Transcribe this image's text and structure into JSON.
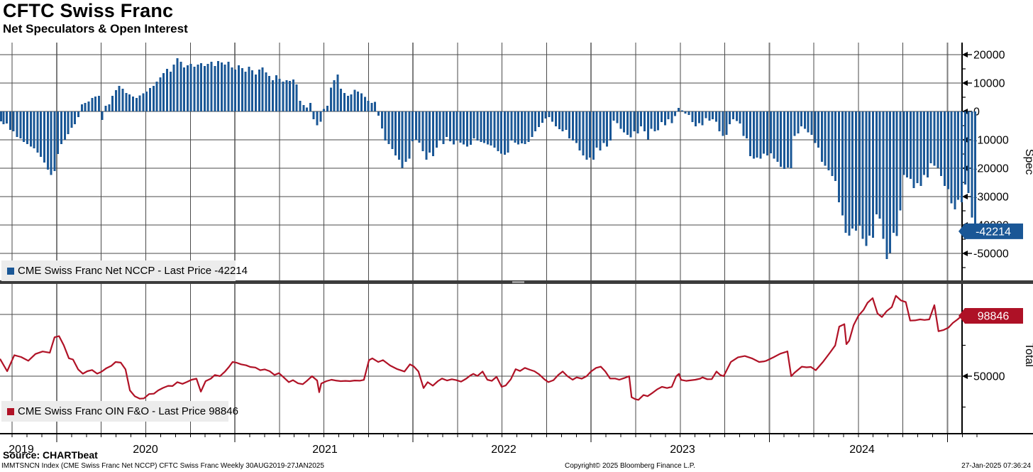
{
  "header": {
    "title": "CFTC Swiss Franc",
    "subtitle": "Net Speculators & Open Interest"
  },
  "x_axis": {
    "year_labels": [
      "2019",
      "2020",
      "2021",
      "2022",
      "2023",
      "2024"
    ],
    "range_text": "30AUG2019-27JAN2025",
    "frequency": "Weekly"
  },
  "colors": {
    "bar": "#1a5796",
    "bar_badge": "#1a5796",
    "line": "#b01226",
    "line_badge": "#ae1126",
    "grid": "#4a4a4a",
    "year_grid": "#7d7d7d",
    "axis": "#000000",
    "legend_bg": "#ececec",
    "badge_text": "#ffffff"
  },
  "legend_top": {
    "label": "CME Swiss Franc Net NCCP - Last Price -42214"
  },
  "legend_bottom": {
    "label": "CME Swiss Franc OIN F&O - Last Price 98846"
  },
  "footer": {
    "source": "Source: CHARTbeat",
    "index_line": "IMMTSNCN Index (CME Swiss Franc Net NCCP) CFTC Swiss Franc  Weekly 30AUG2019-27JAN2025",
    "copyright": "Copyright© 2025 Bloomberg Finance L.P.",
    "timestamp": "27-Jan-2025 07:36:24"
  },
  "chart_data": [
    {
      "type": "bar",
      "title": "CME Swiss Franc Net NCCP - Last Price -42214",
      "series_name": "CME Swiss Franc Net NCCP",
      "last_price": -42214,
      "axis_label": "Spec",
      "legend_position": "bottom-left inside",
      "grid": true,
      "y_ticks": [
        20000,
        10000,
        0,
        -10000,
        -20000,
        -30000,
        -40000,
        -50000
      ],
      "y_minor_ticks": [
        15000,
        5000,
        -5000,
        -15000,
        -25000,
        -35000,
        -45000,
        -55000
      ],
      "ylim": [
        -59500,
        24250
      ],
      "x_start": "30AUG2019",
      "x_end": "27JAN2025",
      "frequency": "Weekly",
      "values": [
        -3500,
        -4500,
        -4200,
        -6500,
        -7000,
        -9000,
        -9500,
        -10700,
        -11500,
        -12400,
        -13000,
        -14500,
        -16000,
        -18000,
        -20500,
        -22400,
        -21000,
        -15000,
        -11500,
        -10000,
        -8000,
        -5700,
        -4500,
        -2000,
        2500,
        3000,
        3500,
        4800,
        5200,
        5500,
        -3000,
        2000,
        2500,
        5500,
        7500,
        9000,
        8000,
        6500,
        6000,
        5200,
        4800,
        5600,
        6400,
        7000,
        8200,
        9000,
        10500,
        12000,
        13500,
        15000,
        14000,
        16500,
        18700,
        17500,
        15500,
        16200,
        16800,
        15800,
        16500,
        17000,
        16000,
        16800,
        17500,
        16000,
        17800,
        17200,
        16500,
        17500,
        15500,
        14800,
        16300,
        15200,
        14000,
        15800,
        14500,
        13000,
        14800,
        15500,
        13800,
        12500,
        11000,
        12800,
        11500,
        10500,
        11000,
        10800,
        11200,
        9500,
        3800,
        2200,
        1400,
        3000,
        -2800,
        -4900,
        -3600,
        900,
        2000,
        8400,
        11000,
        13000,
        8000,
        6500,
        5500,
        6000,
        7600,
        7000,
        6400,
        5100,
        3800,
        3000,
        3400,
        -1500,
        -6000,
        -10300,
        -11500,
        -13250,
        -15500,
        -17000,
        -19900,
        -17800,
        -16600,
        -10500,
        -10000,
        -11000,
        -14000,
        -17000,
        -14500,
        -15750,
        -12800,
        -10300,
        -11500,
        -9000,
        -10500,
        -11600,
        -10300,
        -11000,
        -11600,
        -12400,
        -11800,
        -9500,
        -10300,
        -10700,
        -11100,
        -11600,
        -12000,
        -12800,
        -14000,
        -14900,
        -15300,
        -14500,
        -10300,
        -11000,
        -11600,
        -11300,
        -11500,
        -10800,
        -9000,
        -7000,
        -5500,
        -4000,
        -2500,
        -2000,
        -3600,
        -5300,
        -6200,
        -7000,
        -6500,
        -9500,
        -10300,
        -11100,
        -13700,
        -15500,
        -17000,
        -16200,
        -17000,
        -12800,
        -13700,
        -11100,
        -12400,
        -10300,
        -3200,
        -4100,
        -6100,
        -7400,
        -8200,
        -9100,
        -7000,
        -7800,
        -5300,
        -7000,
        -9900,
        -6100,
        -7000,
        -6600,
        -3700,
        -4900,
        -2800,
        -4100,
        -1600,
        1300,
        400,
        -750,
        -1200,
        -3700,
        -5300,
        -4100,
        -4900,
        -2400,
        -3200,
        -2800,
        -3600,
        -7000,
        -8600,
        -8200,
        -4500,
        -2800,
        -3400,
        -4200,
        -8600,
        -9500,
        -15700,
        -16600,
        -16200,
        -16600,
        -14900,
        -15500,
        -14700,
        -16600,
        -17800,
        -19500,
        -20300,
        -19800,
        -20000,
        -8600,
        -7800,
        -5300,
        -6100,
        -7400,
        -8200,
        -11100,
        -12800,
        -17800,
        -19100,
        -20800,
        -22800,
        -24500,
        -32000,
        -36600,
        -42800,
        -43700,
        -41200,
        -42000,
        -40300,
        -44900,
        -47400,
        -43700,
        -44500,
        -36200,
        -37800,
        -44900,
        -52000,
        -49900,
        -42800,
        -43900,
        -34900,
        -22400,
        -23200,
        -23700,
        -27000,
        -25300,
        -26200,
        -22400,
        -23200,
        -18200,
        -19100,
        -19900,
        -22800,
        -26200,
        -27400,
        -32400,
        -34500,
        -31100,
        -32000,
        -25800,
        -28700,
        -37400,
        -42214
      ]
    },
    {
      "type": "line",
      "title": "CME Swiss Franc OIN F&O - Last Price 98846",
      "series_name": "CME Swiss Franc OIN F&O",
      "last_price": 98846,
      "axis_label": "Total",
      "grid": true,
      "y_ticks": [
        100000,
        50000
      ],
      "y_minor_ticks": [
        75000,
        25000
      ],
      "ylim": [
        4000,
        124700
      ],
      "x_start": "30AUG2019",
      "x_end": "27JAN2025",
      "frequency": "Weekly",
      "points": [
        [
          0,
          64000
        ],
        [
          2.1,
          54000
        ],
        [
          4.2,
          67000
        ],
        [
          6.2,
          65500
        ],
        [
          8.3,
          62500
        ],
        [
          10.4,
          68000
        ],
        [
          12.5,
          70000
        ],
        [
          14.6,
          69000
        ],
        [
          16,
          81500
        ],
        [
          17.3,
          82500
        ],
        [
          18.7,
          75000
        ],
        [
          20.2,
          64500
        ],
        [
          21.4,
          63500
        ],
        [
          22.9,
          55500
        ],
        [
          24.3,
          52000
        ],
        [
          25.6,
          54000
        ],
        [
          27,
          55000
        ],
        [
          28.5,
          52000
        ],
        [
          29.7,
          53500
        ],
        [
          31.2,
          56500
        ],
        [
          32.7,
          58500
        ],
        [
          33.9,
          61500
        ],
        [
          35.4,
          61000
        ],
        [
          36.8,
          55500
        ],
        [
          38.1,
          38500
        ],
        [
          39.5,
          33800
        ],
        [
          41,
          31800
        ],
        [
          42.2,
          32000
        ],
        [
          43.7,
          35500
        ],
        [
          45.1,
          35800
        ],
        [
          46.4,
          38500
        ],
        [
          47.8,
          40500
        ],
        [
          49.3,
          42200
        ],
        [
          50.6,
          42000
        ],
        [
          52,
          45200
        ],
        [
          53.5,
          43800
        ],
        [
          54.7,
          45200
        ],
        [
          56.2,
          47100
        ],
        [
          57.6,
          48000
        ],
        [
          58.9,
          37500
        ],
        [
          60.3,
          46000
        ],
        [
          61.8,
          48000
        ],
        [
          63,
          51000
        ],
        [
          64.5,
          50000
        ],
        [
          66,
          53800
        ],
        [
          67.2,
          57700
        ],
        [
          68.2,
          61500
        ],
        [
          69.3,
          61000
        ],
        [
          70.7,
          59600
        ],
        [
          72.2,
          58800
        ],
        [
          73.4,
          57500
        ],
        [
          74.9,
          57000
        ],
        [
          76.3,
          54800
        ],
        [
          77.6,
          55500
        ],
        [
          79.1,
          54000
        ],
        [
          80.5,
          51000
        ],
        [
          81.8,
          52500
        ],
        [
          83.2,
          49000
        ],
        [
          84.7,
          45200
        ],
        [
          85.9,
          46800
        ],
        [
          87.4,
          44200
        ],
        [
          88.8,
          43500
        ],
        [
          90.1,
          46500
        ],
        [
          91.5,
          50000
        ],
        [
          93,
          46500
        ],
        [
          93.6,
          37000
        ],
        [
          94.2,
          44000
        ],
        [
          95.7,
          46000
        ],
        [
          97.2,
          47100
        ],
        [
          98.4,
          46500
        ],
        [
          99.9,
          46000
        ],
        [
          101.3,
          46200
        ],
        [
          102.6,
          46000
        ],
        [
          104,
          46500
        ],
        [
          105.5,
          46300
        ],
        [
          106.7,
          47000
        ],
        [
          108.2,
          63000
        ],
        [
          109.2,
          64400
        ],
        [
          110.9,
          61500
        ],
        [
          112.3,
          63000
        ],
        [
          114.4,
          58600
        ],
        [
          116.5,
          55700
        ],
        [
          118.6,
          53800
        ],
        [
          120.2,
          59600
        ],
        [
          121.3,
          58000
        ],
        [
          122.7,
          53800
        ],
        [
          124.2,
          40400
        ],
        [
          125.4,
          45200
        ],
        [
          126.9,
          42300
        ],
        [
          128.4,
          46000
        ],
        [
          129.6,
          48100
        ],
        [
          131.1,
          46500
        ],
        [
          132.5,
          47500
        ],
        [
          133.8,
          46800
        ],
        [
          135.2,
          45600
        ],
        [
          136.7,
          48000
        ],
        [
          137.9,
          50500
        ],
        [
          138.8,
          51900
        ],
        [
          140,
          50200
        ],
        [
          141.5,
          53800
        ],
        [
          142.9,
          47100
        ],
        [
          144.2,
          46200
        ],
        [
          145.6,
          49500
        ],
        [
          147.1,
          41400
        ],
        [
          148.3,
          42500
        ],
        [
          149.8,
          47500
        ],
        [
          151.2,
          55700
        ],
        [
          152.5,
          54200
        ],
        [
          153.9,
          56700
        ],
        [
          155.4,
          55200
        ],
        [
          156.7,
          54000
        ],
        [
          158.1,
          51500
        ],
        [
          159.6,
          47500
        ],
        [
          160.8,
          45200
        ],
        [
          162.3,
          46800
        ],
        [
          163.7,
          51000
        ],
        [
          165,
          53800
        ],
        [
          166.4,
          50000
        ],
        [
          167.9,
          47100
        ],
        [
          169.1,
          49000
        ],
        [
          170.6,
          48000
        ],
        [
          172,
          50000
        ],
        [
          173.3,
          53800
        ],
        [
          174.8,
          56700
        ],
        [
          176.2,
          57700
        ],
        [
          177.5,
          53800
        ],
        [
          178.9,
          48100
        ],
        [
          180.4,
          48100
        ],
        [
          181.6,
          47100
        ],
        [
          183.1,
          48500
        ],
        [
          184.5,
          50000
        ],
        [
          185.2,
          33000
        ],
        [
          186.2,
          31500
        ],
        [
          187.2,
          30800
        ],
        [
          188.7,
          34700
        ],
        [
          189.9,
          33800
        ],
        [
          191.4,
          36600
        ],
        [
          192.8,
          39500
        ],
        [
          194.1,
          41400
        ],
        [
          195.6,
          40400
        ],
        [
          197,
          41400
        ],
        [
          198.3,
          50000
        ],
        [
          199.1,
          51900
        ],
        [
          199.7,
          47000
        ],
        [
          201.2,
          46200
        ],
        [
          202.4,
          46600
        ],
        [
          203.9,
          47100
        ],
        [
          205.3,
          48000
        ],
        [
          206,
          49000
        ],
        [
          207.4,
          47500
        ],
        [
          208.7,
          47600
        ],
        [
          210.1,
          53800
        ],
        [
          211.2,
          51000
        ],
        [
          212.2,
          50000
        ],
        [
          214.3,
          61500
        ],
        [
          216.4,
          65300
        ],
        [
          218.4,
          66300
        ],
        [
          219.9,
          65000
        ],
        [
          220.5,
          64400
        ],
        [
          222.6,
          61500
        ],
        [
          224.1,
          62000
        ],
        [
          224.7,
          62500
        ],
        [
          226.8,
          65300
        ],
        [
          228.8,
          68200
        ],
        [
          230.3,
          69500
        ],
        [
          230.9,
          70100
        ],
        [
          232,
          50000
        ],
        [
          233,
          52900
        ],
        [
          235.1,
          57700
        ],
        [
          236.5,
          57200
        ],
        [
          237.8,
          57500
        ],
        [
          239.2,
          54800
        ],
        [
          241.3,
          61500
        ],
        [
          243.4,
          69200
        ],
        [
          244.9,
          74900
        ],
        [
          246.1,
          90200
        ],
        [
          247.6,
          92100
        ],
        [
          248.2,
          75900
        ],
        [
          249,
          78700
        ],
        [
          250.3,
          91200
        ],
        [
          251.7,
          98900
        ],
        [
          253.2,
          103600
        ],
        [
          254.4,
          109400
        ],
        [
          255.9,
          113200
        ],
        [
          257.3,
          100800
        ],
        [
          258.6,
          97900
        ],
        [
          260,
          102700
        ],
        [
          261.5,
          106000
        ],
        [
          262.7,
          115100
        ],
        [
          264.2,
          111300
        ],
        [
          265.6,
          110000
        ],
        [
          266.9,
          95000
        ],
        [
          268.3,
          95200
        ],
        [
          269.8,
          96000
        ],
        [
          271.1,
          95500
        ],
        [
          272.5,
          96000
        ],
        [
          274,
          107500
        ],
        [
          275.2,
          86400
        ],
        [
          276.7,
          87400
        ],
        [
          278.1,
          89300
        ],
        [
          279.4,
          93100
        ],
        [
          280.8,
          96000
        ],
        [
          282,
          98846
        ]
      ]
    }
  ]
}
